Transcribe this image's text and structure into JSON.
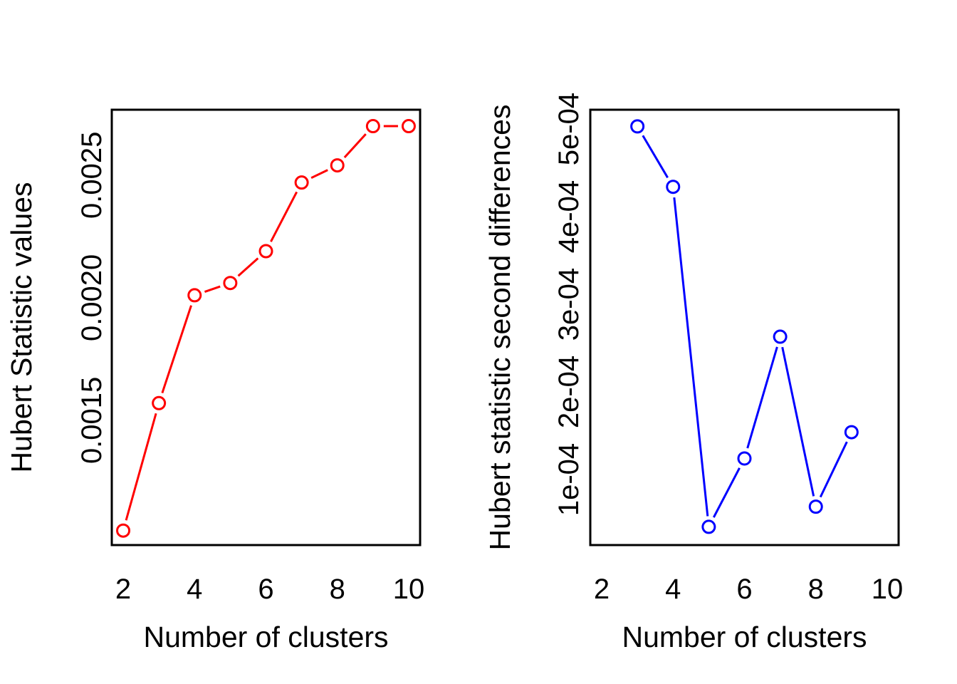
{
  "page": {
    "background": "#ffffff",
    "description": "Two R-style scatter/line plots side by side (NbClust Hubert index output)"
  },
  "chart_data": [
    {
      "type": "line",
      "panel": "left",
      "title": "",
      "xlabel": "Number of clusters",
      "ylabel": "Hubert Statistic values",
      "x": [
        2,
        3,
        4,
        5,
        6,
        7,
        8,
        9,
        10
      ],
      "values": [
        0.00105,
        0.00157,
        0.00201,
        0.00206,
        0.00219,
        0.00247,
        0.00254,
        0.0027,
        0.0027
      ],
      "xticks": [
        2,
        4,
        6,
        8,
        10
      ],
      "ytick_labels": [
        "0.0015",
        "0.0020",
        "0.0025"
      ],
      "ytick_values": [
        0.0015,
        0.002,
        0.0025
      ],
      "xlim": [
        1.68,
        10.32
      ],
      "ylim": [
        0.000991,
        0.002767
      ],
      "color": "#ff0000",
      "marker": "open-circle",
      "line_type": "b",
      "grid": false,
      "legend": null
    },
    {
      "type": "line",
      "panel": "right",
      "title": "",
      "xlabel": "Number of clusters",
      "ylabel": "Hubert statistic second differences",
      "x": [
        3,
        4,
        5,
        6,
        7,
        8,
        9
      ],
      "values": [
        0.000503,
        0.000434,
        4.6e-05,
        0.000124,
        0.000263,
        6.9e-05,
        0.000154
      ],
      "xticks": [
        2,
        4,
        6,
        8,
        10
      ],
      "ytick_labels": [
        "1e-04",
        "2e-04",
        "3e-04",
        "4e-04",
        "5e-04"
      ],
      "ytick_values": [
        0.0001,
        0.0002,
        0.0003,
        0.0004,
        0.0005
      ],
      "xlim": [
        1.68,
        10.32
      ],
      "ylim": [
        2.52e-05,
        0.000522
      ],
      "color": "#0000ff",
      "marker": "open-circle",
      "line_type": "b",
      "grid": false,
      "legend": null
    }
  ]
}
